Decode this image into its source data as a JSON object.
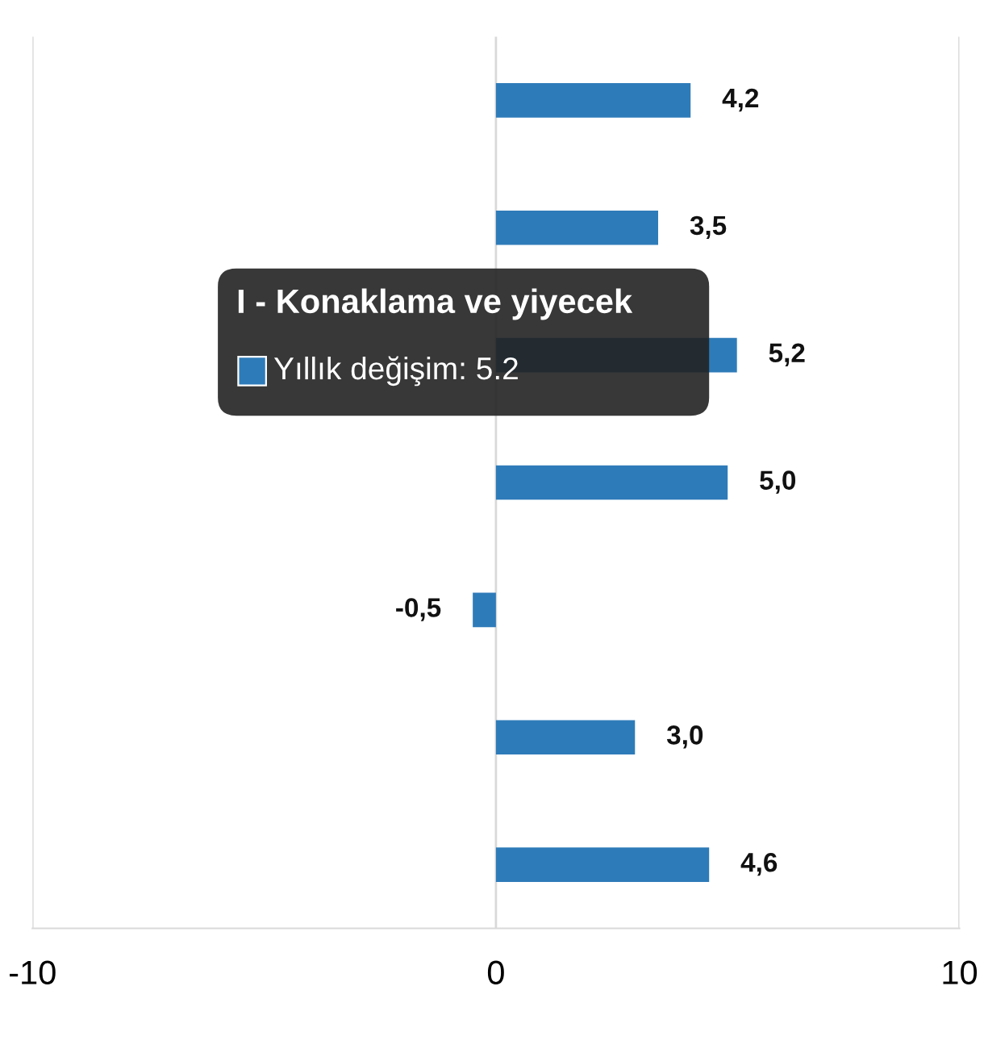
{
  "chart_data": {
    "type": "bar",
    "orientation": "horizontal",
    "categories": [
      null,
      null,
      null,
      null,
      null,
      null,
      null
    ],
    "values": [
      4.2,
      3.5,
      5.2,
      5.0,
      -0.5,
      3.0,
      4.6
    ],
    "value_labels": [
      "4,2",
      "3,5",
      "5,2",
      "5,0",
      "-0,5",
      "3,0",
      "4,6"
    ],
    "color": "#2e7bb9",
    "xlim": [
      -10,
      10
    ],
    "xticks": [
      -10,
      0,
      10
    ],
    "grid": "x",
    "annotations": [
      "I - Konaklama ve yiyecek",
      "Yıllık değişim: 5.2"
    ]
  }
}
